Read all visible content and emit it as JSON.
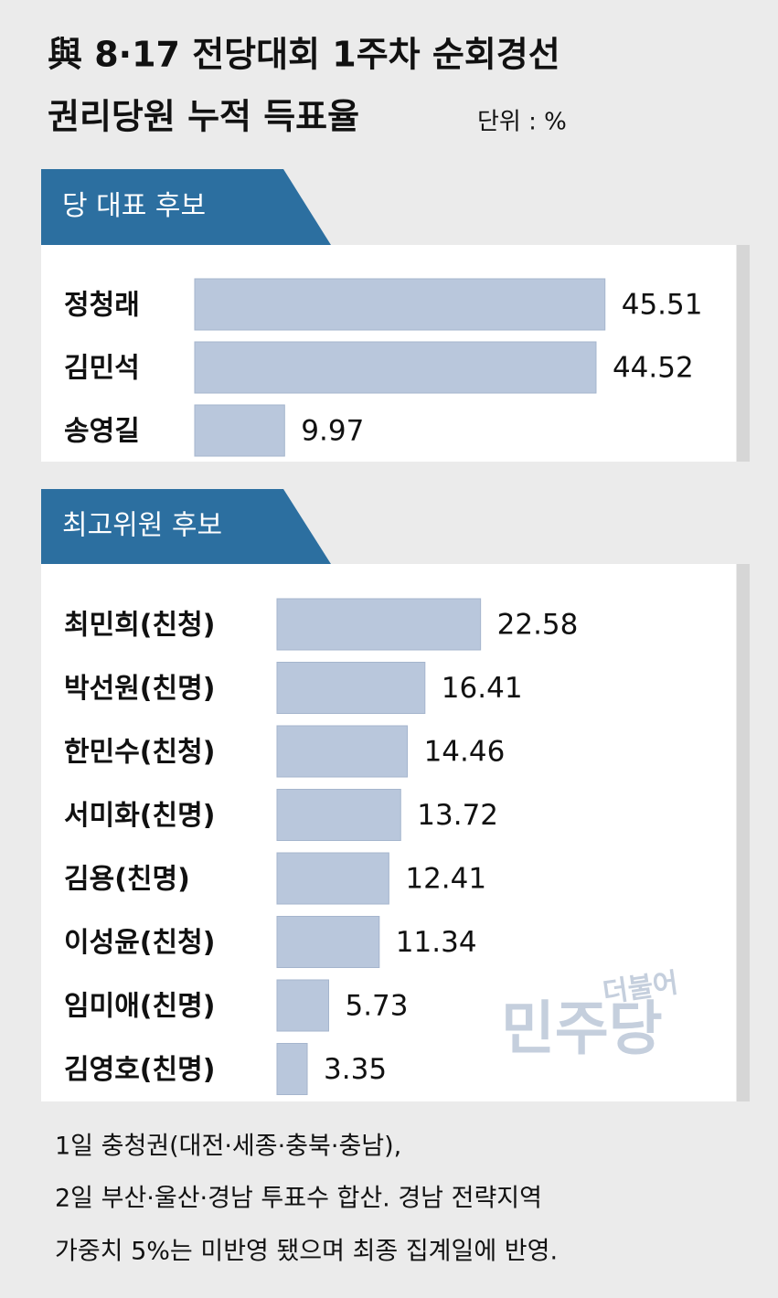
{
  "header": {
    "title_lines": [
      "與 8·17 전당대회 1주차 순회경선",
      "권리당원 누적 득표율"
    ],
    "unit": "단위 : %"
  },
  "chart_data": [
    {
      "type": "bar",
      "title": "당 대표 후보",
      "categories": [
        "정청래",
        "김민석",
        "송영길"
      ],
      "values": [
        45.51,
        44.52,
        9.97
      ],
      "color": "#b9c7dc"
    },
    {
      "type": "bar",
      "title": "최고위원 후보",
      "categories": [
        "최민희(친청)",
        "박선원(친명)",
        "한민수(친청)",
        "서미화(친명)",
        "김용(친명)",
        "이성윤(친청)",
        "임미애(친명)",
        "김영호(친명)"
      ],
      "values": [
        22.58,
        16.41,
        14.46,
        13.72,
        12.41,
        11.34,
        5.73,
        3.35
      ],
      "color": "#b9c7dc"
    }
  ],
  "watermark": [
    "더불어",
    "민주당"
  ],
  "footnote": [
    "1일 충청권(대전·세종·충북·충남),",
    "2일 부산·울산·경남 투표수 합산. 경남 전략지역",
    "가중치 5%는 미반영 됐으며 최종 집계일에 반영."
  ]
}
